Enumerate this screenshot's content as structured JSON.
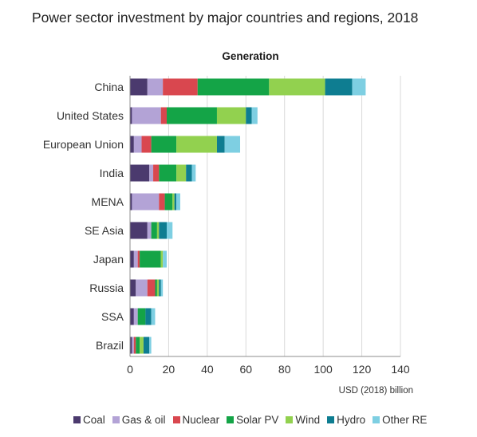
{
  "chart_data": {
    "type": "bar",
    "orientation": "horizontal",
    "stacked": true,
    "title": "Power sector investment by major countries and regions, 2018",
    "subtitle": "Generation",
    "xlabel": "USD (2018) billion",
    "ylabel": "",
    "xlim": [
      0,
      140
    ],
    "xticks": [
      0,
      20,
      40,
      60,
      80,
      100,
      120,
      140
    ],
    "grid": true,
    "legend_position": "bottom",
    "categories": [
      "China",
      "United States",
      "European Union",
      "India",
      "MENA",
      "SE Asia",
      "Japan",
      "Russia",
      "SSA",
      "Brazil"
    ],
    "series": [
      {
        "name": "Coal",
        "color": "#4b3a6e",
        "values": [
          9,
          1,
          2,
          10,
          1,
          9,
          2,
          3,
          2,
          1
        ]
      },
      {
        "name": "Gas & oil",
        "color": "#b3a3d6",
        "values": [
          8,
          15,
          4,
          2,
          14,
          2,
          2,
          6,
          2,
          1
        ]
      },
      {
        "name": "Nuclear",
        "color": "#d9474f",
        "values": [
          18,
          3,
          5,
          3,
          3,
          0,
          1,
          4,
          0,
          1
        ]
      },
      {
        "name": "Solar PV",
        "color": "#14a447",
        "values": [
          37,
          26,
          13,
          9,
          4,
          3,
          11,
          1,
          4,
          2
        ]
      },
      {
        "name": "Wind",
        "color": "#92d14f",
        "values": [
          29,
          15,
          21,
          5,
          1,
          1,
          1,
          1,
          0,
          2
        ]
      },
      {
        "name": "Hydro",
        "color": "#0e7d91",
        "values": [
          14,
          3,
          4,
          3,
          1,
          4,
          0,
          1,
          3,
          3
        ]
      },
      {
        "name": "Other RE",
        "color": "#7ecfe2",
        "values": [
          7,
          3,
          8,
          2,
          2,
          3,
          2,
          1,
          2,
          1
        ]
      }
    ]
  }
}
